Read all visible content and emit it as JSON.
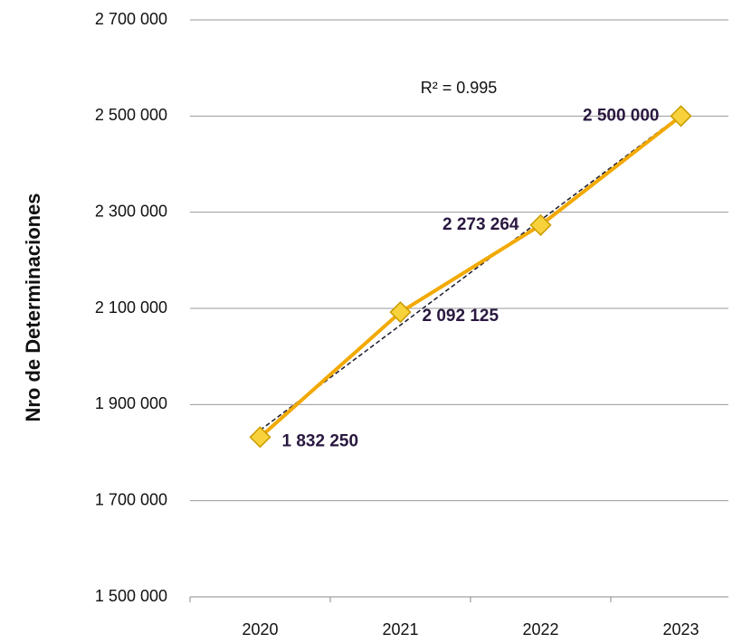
{
  "chart_data": {
    "type": "line",
    "y_axis_label": "Nro de Determinaciones",
    "annotation": "R² = 0.995",
    "categories": [
      "2020",
      "2021",
      "2022",
      "2023"
    ],
    "series": [
      {
        "name": "Nro de Determinaciones",
        "color": "#f2a900",
        "values": [
          1832250,
          2092125,
          2273264,
          2500000
        ],
        "value_labels": [
          "1 832 250",
          "2 092 125",
          "2 273 264",
          "2 500 000"
        ]
      }
    ],
    "trendline": {
      "style": "dashed",
      "color": "#1a1a2e"
    },
    "ylim": [
      1500000,
      2700000
    ],
    "yticks": [
      {
        "value": 1500000,
        "label": "1 500 000"
      },
      {
        "value": 1700000,
        "label": "1 700 000"
      },
      {
        "value": 1900000,
        "label": "1 900 000"
      },
      {
        "value": 2100000,
        "label": "2 100 000"
      },
      {
        "value": 2300000,
        "label": "2 300 000"
      },
      {
        "value": 2500000,
        "label": "2 500 000"
      },
      {
        "value": 2700000,
        "label": "2 700 000"
      }
    ],
    "grid": true
  }
}
